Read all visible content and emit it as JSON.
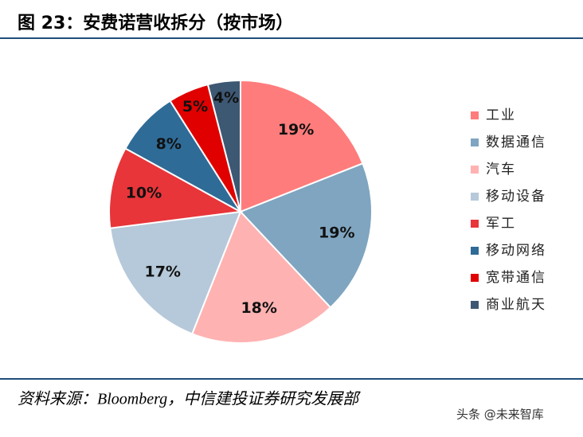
{
  "chart_data": {
    "type": "pie",
    "title": "图 23：安费诺营收拆分（按市场）",
    "categories": [
      "工业",
      "数据通信",
      "汽车",
      "移动设备",
      "军工",
      "移动网络",
      "宽带通信",
      "商业航天"
    ],
    "values": [
      19,
      19,
      18,
      17,
      10,
      8,
      5,
      4
    ],
    "value_labels": [
      "19%",
      "19%",
      "18%",
      "17%",
      "10%",
      "8%",
      "5%",
      "4%"
    ],
    "colors": [
      "#ff7c7c",
      "#7fa5c0",
      "#ffb2b2",
      "#b6c9da",
      "#e8353a",
      "#2f6b97",
      "#e00000",
      "#3d5873"
    ],
    "legend": "right",
    "source": "资料来源：Bloomberg，中信建投证券研究发展部",
    "watermark": "头条 @未来智库"
  }
}
